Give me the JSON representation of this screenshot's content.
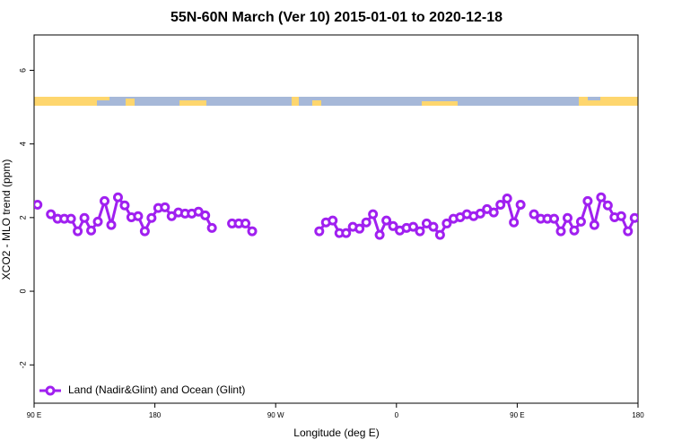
{
  "chart_data": {
    "type": "line",
    "title": "55N-60N March (Ver 10)   2015-01-01 to 2020-12-18",
    "x_label": "Longitude (deg E)",
    "y_label": "XCO2 - MLO trend (ppm)",
    "xlim": [
      90,
      540
    ],
    "ylim": [
      -3.04,
      6.96
    ],
    "xticks": [
      {
        "value": 90,
        "label": "90 E"
      },
      180,
      {
        "value": 270,
        "label": "90 W"
      },
      {
        "value": 360,
        "label": "0"
      },
      {
        "value": 450,
        "label": "90 E"
      },
      {
        "value": 540,
        "label": "180"
      }
    ],
    "yticks": [
      -2,
      0,
      2,
      4,
      6
    ],
    "legend": "bottomleft",
    "x": [
      92.5,
      97.5,
      102.5,
      107.5,
      112.5,
      117.5,
      122.5,
      127.5,
      132.5,
      137.5,
      142.5,
      147.5,
      152.5,
      157.5,
      162.5,
      167.5,
      172.5,
      177.5,
      182.5,
      187.5,
      192.5,
      197.5,
      202.5,
      207.5,
      212.5,
      217.5,
      222.5,
      227.5,
      232.5,
      237.5,
      242.5,
      247.5,
      252.5,
      257.5,
      262.5,
      267.5,
      272.5,
      277.5,
      282.5,
      287.5,
      292.5,
      297.5,
      302.5,
      307.5,
      312.5,
      317.5,
      322.5,
      327.5,
      332.5,
      337.5,
      342.5,
      347.5,
      352.5,
      357.5,
      362.5,
      367.5,
      372.5,
      377.5,
      382.5,
      387.5,
      392.5,
      397.5,
      402.5,
      407.5,
      412.5,
      417.5,
      422.5,
      427.5,
      432.5,
      437.5,
      442.5,
      447.5,
      452.5,
      457.5,
      462.5,
      467.5,
      472.5,
      477.5,
      482.5,
      487.5,
      492.5,
      497.5,
      502.5,
      507.5,
      512.5,
      517.5,
      522.5,
      527.5,
      532.5,
      537.5
    ],
    "series": [
      {
        "name": "Land (Nadir&Glint) and Ocean (Glint)",
        "color": "#a020f0",
        "values": [
          2.35,
          null,
          2.09,
          1.97,
          1.97,
          1.97,
          1.63,
          1.99,
          1.65,
          1.89,
          2.45,
          1.8,
          2.55,
          2.33,
          2.01,
          2.04,
          1.63,
          1.99,
          2.26,
          2.28,
          2.04,
          2.14,
          2.11,
          2.11,
          2.16,
          2.06,
          1.72,
          null,
          null,
          1.84,
          1.84,
          1.84,
          1.63,
          null,
          null,
          null,
          null,
          null,
          null,
          null,
          null,
          null,
          1.63,
          1.87,
          1.92,
          1.58,
          1.58,
          1.75,
          1.7,
          1.87,
          2.09,
          1.53,
          1.92,
          1.77,
          1.65,
          1.72,
          1.75,
          1.63,
          1.84,
          1.75,
          1.53,
          1.84,
          1.97,
          2.01,
          2.09,
          2.04,
          2.11,
          2.23,
          2.14,
          2.35,
          2.52,
          1.87,
          2.35,
          null,
          2.09,
          1.97,
          1.97,
          1.97,
          1.63,
          1.99,
          1.65,
          1.89,
          2.45,
          1.8,
          2.55,
          2.33,
          2.01,
          2.04,
          1.63,
          1.99
        ]
      }
    ]
  }
}
